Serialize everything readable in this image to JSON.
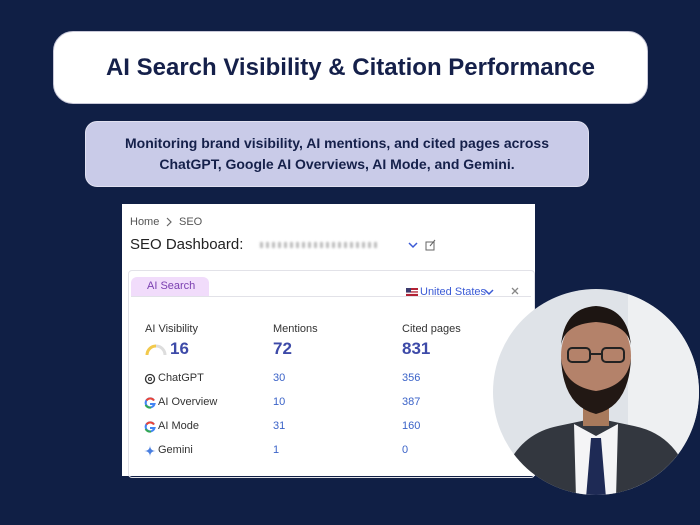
{
  "header": {
    "title": "AI Search Visibility & Citation Performance",
    "subtitle": "Monitoring brand visibility, AI mentions, and cited pages across ChatGPT, Google AI Overviews, AI Mode, and Gemini."
  },
  "dashboard": {
    "breadcrumb": [
      "Home",
      "SEO"
    ],
    "title": "SEO Dashboard:",
    "tab": "AI Search",
    "country": "United States",
    "columns": [
      "AI Visibility",
      "Mentions",
      "Cited pages"
    ],
    "totals": [
      16,
      72,
      831
    ],
    "rows": [
      {
        "name": "ChatGPT",
        "mentions": 30,
        "cited": 356
      },
      {
        "name": "AI Overview",
        "mentions": 10,
        "cited": 387
      },
      {
        "name": "AI Mode",
        "mentions": 31,
        "cited": 160
      },
      {
        "name": "Gemini",
        "mentions": 1,
        "cited": 0
      }
    ]
  }
}
